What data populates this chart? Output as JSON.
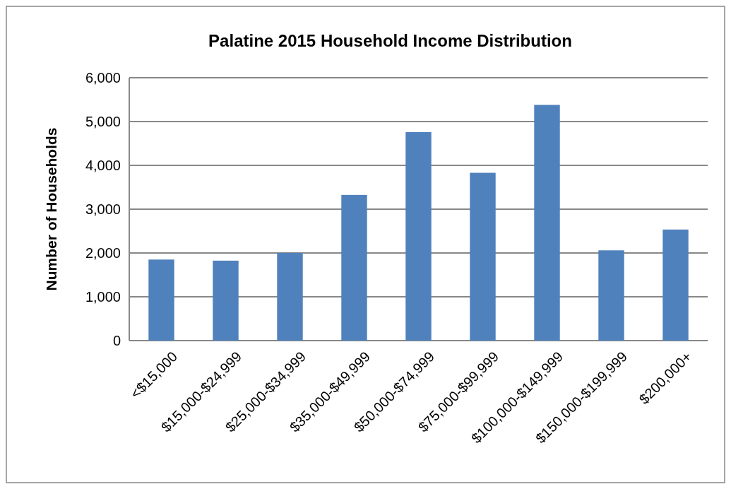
{
  "chart_data": {
    "type": "bar",
    "title": "Palatine 2015 Household Income Distribution",
    "ylabel": "Number of Households",
    "categories": [
      "<$15,000",
      "$15,000-$24,999",
      "$25,000-$34,999",
      "$35,000-$49,999",
      "$50,000-$74,999",
      "$75,000-$99,999",
      "$100,000-$149,999",
      "$150,000-$199,999",
      "$200,000+"
    ],
    "values": [
      1850,
      1825,
      2000,
      3325,
      4760,
      3830,
      5380,
      2060,
      2535
    ],
    "color": "#4f81bd",
    "ylim": [
      0,
      6000
    ],
    "yticks": [
      {
        "value": 0,
        "label": "0"
      },
      {
        "value": 1000,
        "label": "1,000"
      },
      {
        "value": 2000,
        "label": "2,000"
      },
      {
        "value": 3000,
        "label": "3,000"
      },
      {
        "value": 4000,
        "label": "4,000"
      },
      {
        "value": 5000,
        "label": "5,000"
      },
      {
        "value": 6000,
        "label": "6,000"
      }
    ],
    "grid": "y"
  }
}
